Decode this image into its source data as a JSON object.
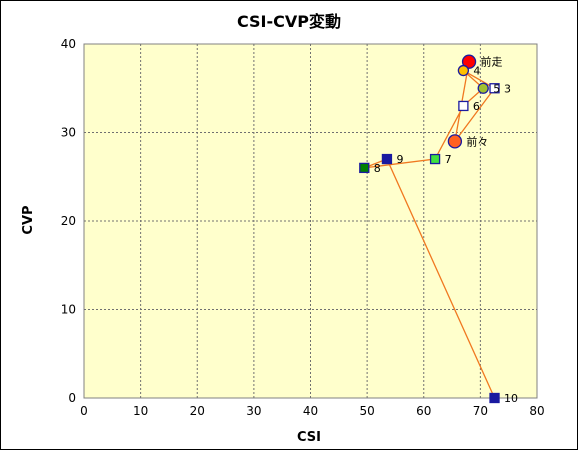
{
  "chart_data": {
    "type": "scatter",
    "title": "CSI-CVP変動",
    "xlabel": "CSI",
    "ylabel": "CVP",
    "xlim": [
      0,
      80
    ],
    "ylim": [
      0,
      40
    ],
    "xticks": [
      0,
      10,
      20,
      30,
      40,
      50,
      60,
      70,
      80
    ],
    "yticks": [
      0,
      10,
      20,
      30,
      40
    ],
    "grid": true,
    "plot_background": "#ffffcc",
    "line_color": "#f07820",
    "path_order": [
      "10",
      "9",
      "8",
      "7",
      "6",
      "5",
      "4",
      "3",
      "前々",
      "前走"
    ],
    "points": [
      {
        "label": "前走",
        "x": 68.0,
        "y": 38.0,
        "marker": "circle",
        "size": "large",
        "fill": "#ff0000",
        "stroke": "#1a1aa0"
      },
      {
        "label": "4",
        "x": 67.0,
        "y": 37.0,
        "marker": "circle",
        "size": "small",
        "fill": "#ffc000",
        "stroke": "#1a1aa0"
      },
      {
        "label": "5",
        "x": 70.5,
        "y": 35.0,
        "marker": "circle",
        "size": "small",
        "fill": "#a0c030",
        "stroke": "#1a1aa0"
      },
      {
        "label": "3",
        "x": 72.5,
        "y": 35.0,
        "marker": "square",
        "size": "small",
        "fill": "#ffffff",
        "stroke": "#1a1aa0"
      },
      {
        "label": "6",
        "x": 67.0,
        "y": 33.0,
        "marker": "square",
        "size": "small",
        "fill": "#ffffff",
        "stroke": "#1a1aa0"
      },
      {
        "label": "前々",
        "x": 65.5,
        "y": 29.0,
        "marker": "circle",
        "size": "large",
        "fill": "#ff6020",
        "stroke": "#1a1aa0"
      },
      {
        "label": "7",
        "x": 62.0,
        "y": 27.0,
        "marker": "square",
        "size": "small",
        "fill": "#40e040",
        "stroke": "#1a1aa0"
      },
      {
        "label": "9",
        "x": 53.5,
        "y": 27.0,
        "marker": "square",
        "size": "small",
        "fill": "#1a1aa0",
        "stroke": "#1a1aa0"
      },
      {
        "label": "8",
        "x": 49.5,
        "y": 26.0,
        "marker": "square",
        "size": "small",
        "fill": "#008000",
        "stroke": "#1a1aa0"
      },
      {
        "label": "10",
        "x": 72.5,
        "y": 0.0,
        "marker": "square",
        "size": "small",
        "fill": "#1a1aa0",
        "stroke": "#1a1aa0"
      }
    ]
  }
}
